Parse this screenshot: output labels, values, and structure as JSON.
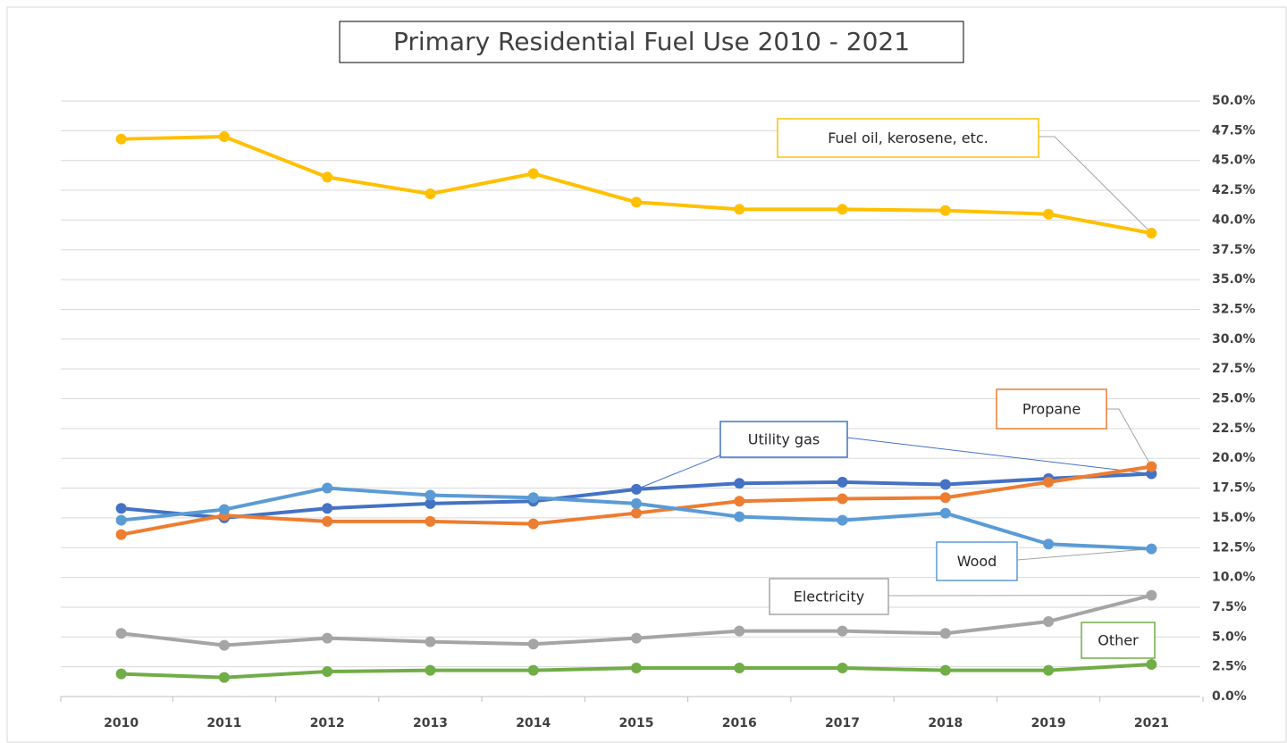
{
  "chart_data": {
    "type": "line",
    "title": "Primary Residential Fuel Use 2010 - 2021",
    "categories": [
      "2010",
      "2011",
      "2012",
      "2013",
      "2014",
      "2015",
      "2016",
      "2017",
      "2018",
      "2019",
      "2021"
    ],
    "series": [
      {
        "name": "Fuel oil, kerosene, etc.",
        "color": "#ffc000",
        "values": [
          46.8,
          47.0,
          43.6,
          42.2,
          43.9,
          41.5,
          40.9,
          40.9,
          40.8,
          40.5,
          38.9
        ]
      },
      {
        "name": "Utility gas",
        "color": "#4472c4",
        "values": [
          15.8,
          15.0,
          15.8,
          16.2,
          16.4,
          17.4,
          17.9,
          18.0,
          17.8,
          18.3,
          18.7
        ]
      },
      {
        "name": "Propane",
        "color": "#ed7d31",
        "values": [
          13.6,
          15.2,
          14.7,
          14.7,
          14.5,
          15.4,
          16.4,
          16.6,
          16.7,
          18.0,
          19.3
        ]
      },
      {
        "name": "Wood",
        "color": "#5b9bd5",
        "values": [
          14.8,
          15.7,
          17.5,
          16.9,
          16.7,
          16.2,
          15.1,
          14.8,
          15.4,
          12.8,
          12.4
        ]
      },
      {
        "name": "Electricity",
        "color": "#a5a5a5",
        "values": [
          5.3,
          4.3,
          4.9,
          4.6,
          4.4,
          4.9,
          5.5,
          5.5,
          5.3,
          6.3,
          8.5
        ]
      },
      {
        "name": "Other",
        "color": "#70ad47",
        "values": [
          1.9,
          1.6,
          2.1,
          2.2,
          2.2,
          2.4,
          2.4,
          2.4,
          2.2,
          2.2,
          2.7
        ]
      }
    ],
    "ylim": [
      0,
      50
    ],
    "yticks": [
      {
        "value": 0,
        "label": "0.0%"
      },
      {
        "value": 2.5,
        "label": "2.5%"
      },
      {
        "value": 5,
        "label": "5.0%"
      },
      {
        "value": 7.5,
        "label": "7.5%"
      },
      {
        "value": 10,
        "label": "10.0%"
      },
      {
        "value": 12.5,
        "label": "12.5%"
      },
      {
        "value": 15,
        "label": "15.0%"
      },
      {
        "value": 17.5,
        "label": "17.5%"
      },
      {
        "value": 20,
        "label": "20.0%"
      },
      {
        "value": 22.5,
        "label": "22.5%"
      },
      {
        "value": 25,
        "label": "25.0%"
      },
      {
        "value": 27.5,
        "label": "27.5%"
      },
      {
        "value": 30,
        "label": "30.0%"
      },
      {
        "value": 32.5,
        "label": "32.5%"
      },
      {
        "value": 35,
        "label": "35.0%"
      },
      {
        "value": 37.5,
        "label": "37.5%"
      },
      {
        "value": 40,
        "label": "40.0%"
      },
      {
        "value": 42.5,
        "label": "42.5%"
      },
      {
        "value": 45,
        "label": "45.0%"
      },
      {
        "value": 47.5,
        "label": "47.5%"
      },
      {
        "value": 50,
        "label": "50.0%"
      }
    ],
    "grid": true
  }
}
